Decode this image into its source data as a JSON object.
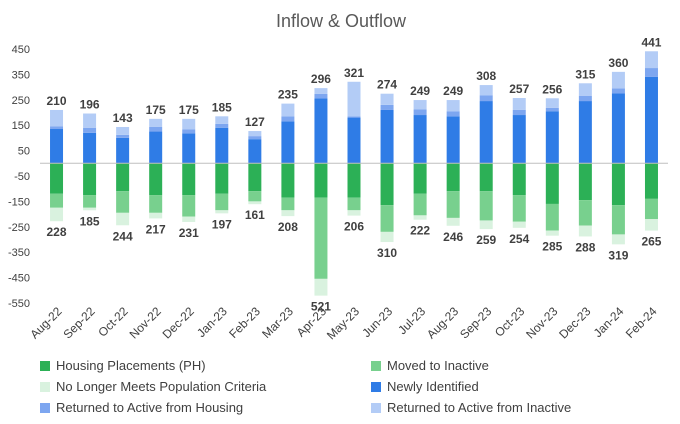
{
  "chart_data": {
    "type": "bar",
    "stacked": true,
    "title": "Inflow & Outflow",
    "xlabel": "",
    "ylabel": "",
    "ylim": [
      -550,
      450
    ],
    "yticks": [
      450,
      350,
      250,
      150,
      50,
      -50,
      -150,
      -250,
      -350,
      -450,
      -550
    ],
    "ytick_labels": [
      "450",
      "350",
      "250",
      "150",
      "50",
      "-50",
      "-150",
      "-250",
      "-350",
      "-450",
      "-550"
    ],
    "grid": false,
    "legend_position": "bottom",
    "categories": [
      "Aug-22",
      "Sep-22",
      "Oct-22",
      "Nov-22",
      "Dec-22",
      "Jan-23",
      "Feb-23",
      "Mar-23",
      "Apr-23",
      "May-23",
      "Jun-23",
      "Jul-23",
      "Aug-23",
      "Sep-23",
      "Oct-23",
      "Nov-23",
      "Dec-23",
      "Jan-24",
      "Feb-24"
    ],
    "inflow_totals": [
      210,
      196,
      143,
      175,
      175,
      185,
      127,
      235,
      296,
      321,
      274,
      249,
      249,
      308,
      257,
      256,
      315,
      360,
      441
    ],
    "outflow_totals": [
      228,
      185,
      244,
      217,
      231,
      197,
      161,
      208,
      521,
      206,
      310,
      222,
      246,
      259,
      254,
      285,
      288,
      319,
      265
    ],
    "series": [
      {
        "name": "Housing Placements (PH)",
        "color": "#2CB056",
        "values": [
          -120,
          -125,
          -110,
          -125,
          -125,
          -120,
          -110,
          -135,
          -135,
          -135,
          -165,
          -120,
          -110,
          -110,
          -125,
          -160,
          -145,
          -165,
          -140
        ]
      },
      {
        "name": "Moved to Inactive",
        "color": "#78D08E",
        "values": [
          -55,
          -50,
          -85,
          -70,
          -85,
          -65,
          -40,
          -50,
          -320,
          -50,
          -105,
          -85,
          -105,
          -115,
          -105,
          -105,
          -100,
          -115,
          -80
        ]
      },
      {
        "name": "No Longer Meets Population Criteria",
        "color": "#D9F2DF",
        "values": [
          -53,
          -10,
          -49,
          -22,
          -21,
          -12,
          -11,
          -23,
          -66,
          -21,
          -40,
          -17,
          -31,
          -34,
          -24,
          -20,
          -43,
          -39,
          -45
        ]
      },
      {
        "name": "Newly Identified",
        "color": "#2F7CE6",
        "values": [
          135,
          120,
          100,
          125,
          118,
          140,
          95,
          165,
          255,
          180,
          210,
          190,
          185,
          245,
          190,
          205,
          245,
          275,
          340
        ]
      },
      {
        "name": "Returned to Active from Housing",
        "color": "#7DA6F0",
        "values": [
          10,
          20,
          12,
          18,
          15,
          15,
          12,
          20,
          18,
          5,
          20,
          22,
          20,
          23,
          20,
          13,
          20,
          20,
          35
        ]
      },
      {
        "name": "Returned to Active from Inactive",
        "color": "#B3CCF6",
        "values": [
          65,
          56,
          31,
          32,
          42,
          30,
          20,
          50,
          23,
          136,
          44,
          37,
          44,
          40,
          47,
          38,
          50,
          65,
          66
        ]
      }
    ]
  }
}
